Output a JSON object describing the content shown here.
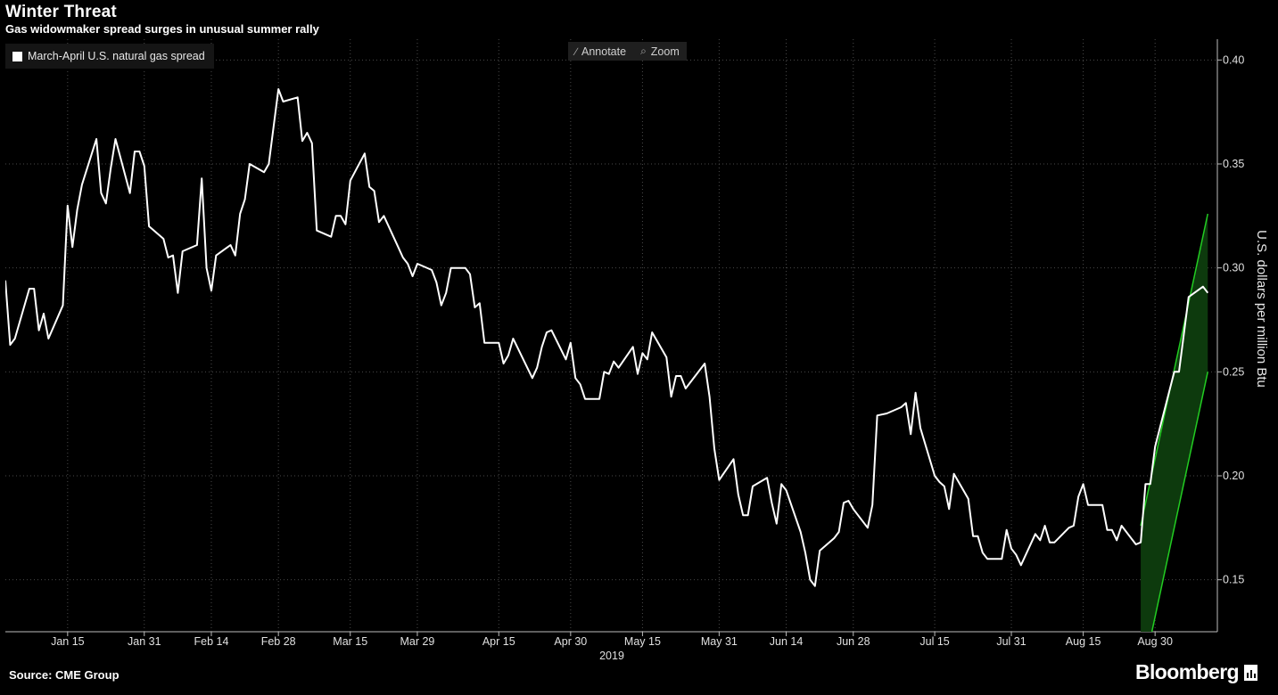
{
  "header": {
    "title": "Winter Threat",
    "subtitle": "Gas widowmaker spread surges in unusual summer rally"
  },
  "toolbar": {
    "annotate_label": "Annotate",
    "zoom_label": "Zoom",
    "annotate_icon": "pencil-icon",
    "zoom_icon": "magnifier-icon"
  },
  "footer": {
    "source": "Source: CME Group",
    "brand": "Bloomberg",
    "brand_icon": "bar-chart-icon"
  },
  "colors": {
    "background": "#000000",
    "line": "#ffffff",
    "trend_channel": "#22cc22",
    "trend_fill": "#0d3a0d",
    "gridline": "#4a4a4a"
  },
  "chart_data": {
    "type": "line",
    "title": "Winter Threat",
    "subtitle": "Gas widowmaker spread surges in unusual summer rally",
    "ylabel": "U.S. dollars per million Btu",
    "xlabel": "2019",
    "y_axis_position": "right",
    "ylim": [
      0.125,
      0.41
    ],
    "y_ticks": [
      0.15,
      0.2,
      0.25,
      0.3,
      0.35,
      0.4
    ],
    "y_tick_labels": [
      "0.15",
      "0.20",
      "0.25",
      "0.30",
      "0.35",
      "0.40"
    ],
    "xlim": [
      "2019-01-02",
      "2019-09-12"
    ],
    "x_ticks": [
      "2019-01-15",
      "2019-01-31",
      "2019-02-14",
      "2019-02-28",
      "2019-03-15",
      "2019-03-29",
      "2019-04-15",
      "2019-04-30",
      "2019-05-15",
      "2019-05-31",
      "2019-06-14",
      "2019-06-28",
      "2019-07-15",
      "2019-07-31",
      "2019-08-15",
      "2019-08-30"
    ],
    "x_tick_labels": [
      "Jan 15",
      "Jan 31",
      "Feb 14",
      "Feb 28",
      "Mar 15",
      "Mar 29",
      "Apr 15",
      "Apr 30",
      "May 15",
      "May 31",
      "Jun 14",
      "Jun 28",
      "Jul 15",
      "Jul 31",
      "Aug 15",
      "Aug 30"
    ],
    "grid": "dotted",
    "legend": "top-left",
    "series": [
      {
        "name": "March-April U.S. natural gas spread",
        "x": [
          "2019-01-02",
          "2019-01-03",
          "2019-01-04",
          "2019-01-07",
          "2019-01-08",
          "2019-01-09",
          "2019-01-10",
          "2019-01-11",
          "2019-01-14",
          "2019-01-15",
          "2019-01-16",
          "2019-01-17",
          "2019-01-18",
          "2019-01-21",
          "2019-01-22",
          "2019-01-23",
          "2019-01-24",
          "2019-01-25",
          "2019-01-28",
          "2019-01-29",
          "2019-01-30",
          "2019-01-31",
          "2019-02-01",
          "2019-02-04",
          "2019-02-05",
          "2019-02-06",
          "2019-02-07",
          "2019-02-08",
          "2019-02-11",
          "2019-02-12",
          "2019-02-13",
          "2019-02-14",
          "2019-02-15",
          "2019-02-18",
          "2019-02-19",
          "2019-02-20",
          "2019-02-21",
          "2019-02-22",
          "2019-02-25",
          "2019-02-26",
          "2019-02-27",
          "2019-02-28",
          "2019-03-01",
          "2019-03-04",
          "2019-03-05",
          "2019-03-06",
          "2019-03-07",
          "2019-03-08",
          "2019-03-11",
          "2019-03-12",
          "2019-03-13",
          "2019-03-14",
          "2019-03-15",
          "2019-03-18",
          "2019-03-19",
          "2019-03-20",
          "2019-03-21",
          "2019-03-22",
          "2019-03-25",
          "2019-03-26",
          "2019-03-27",
          "2019-03-28",
          "2019-03-29",
          "2019-04-01",
          "2019-04-02",
          "2019-04-03",
          "2019-04-04",
          "2019-04-05",
          "2019-04-08",
          "2019-04-09",
          "2019-04-10",
          "2019-04-11",
          "2019-04-12",
          "2019-04-15",
          "2019-04-16",
          "2019-04-17",
          "2019-04-18",
          "2019-04-22",
          "2019-04-23",
          "2019-04-24",
          "2019-04-25",
          "2019-04-26",
          "2019-04-29",
          "2019-04-30",
          "2019-05-01",
          "2019-05-02",
          "2019-05-03",
          "2019-05-06",
          "2019-05-07",
          "2019-05-08",
          "2019-05-09",
          "2019-05-10",
          "2019-05-13",
          "2019-05-14",
          "2019-05-15",
          "2019-05-16",
          "2019-05-17",
          "2019-05-20",
          "2019-05-21",
          "2019-05-22",
          "2019-05-23",
          "2019-05-24",
          "2019-05-28",
          "2019-05-29",
          "2019-05-30",
          "2019-05-31",
          "2019-06-03",
          "2019-06-04",
          "2019-06-05",
          "2019-06-06",
          "2019-06-07",
          "2019-06-10",
          "2019-06-11",
          "2019-06-12",
          "2019-06-13",
          "2019-06-14",
          "2019-06-17",
          "2019-06-18",
          "2019-06-19",
          "2019-06-20",
          "2019-06-21",
          "2019-06-24",
          "2019-06-25",
          "2019-06-26",
          "2019-06-27",
          "2019-06-28",
          "2019-07-01",
          "2019-07-02",
          "2019-07-03",
          "2019-07-05",
          "2019-07-08",
          "2019-07-09",
          "2019-07-10",
          "2019-07-11",
          "2019-07-12",
          "2019-07-15",
          "2019-07-16",
          "2019-07-17",
          "2019-07-18",
          "2019-07-19",
          "2019-07-22",
          "2019-07-23",
          "2019-07-24",
          "2019-07-25",
          "2019-07-26",
          "2019-07-29",
          "2019-07-30",
          "2019-07-31",
          "2019-08-01",
          "2019-08-02",
          "2019-08-05",
          "2019-08-06",
          "2019-08-07",
          "2019-08-08",
          "2019-08-09",
          "2019-08-12",
          "2019-08-13",
          "2019-08-14",
          "2019-08-15",
          "2019-08-16",
          "2019-08-19",
          "2019-08-20",
          "2019-08-21",
          "2019-08-22",
          "2019-08-23",
          "2019-08-26",
          "2019-08-27",
          "2019-08-28",
          "2019-08-29",
          "2019-08-30",
          "2019-09-03",
          "2019-09-04",
          "2019-09-05",
          "2019-09-06",
          "2019-09-09",
          "2019-09-10"
        ],
        "values": [
          0.294,
          0.263,
          0.266,
          0.29,
          0.29,
          0.27,
          0.278,
          0.266,
          0.282,
          0.33,
          0.31,
          0.328,
          0.34,
          0.362,
          0.336,
          0.331,
          0.348,
          0.362,
          0.336,
          0.356,
          0.356,
          0.349,
          0.32,
          0.314,
          0.305,
          0.306,
          0.288,
          0.308,
          0.311,
          0.343,
          0.3,
          0.289,
          0.306,
          0.311,
          0.306,
          0.326,
          0.333,
          0.35,
          0.346,
          0.35,
          0.368,
          0.386,
          0.38,
          0.382,
          0.361,
          0.365,
          0.36,
          0.318,
          0.315,
          0.325,
          0.325,
          0.321,
          0.342,
          0.355,
          0.339,
          0.337,
          0.322,
          0.325,
          0.31,
          0.305,
          0.302,
          0.296,
          0.302,
          0.299,
          0.293,
          0.282,
          0.288,
          0.3,
          0.3,
          0.297,
          0.281,
          0.283,
          0.264,
          0.264,
          0.254,
          0.258,
          0.266,
          0.247,
          0.252,
          0.262,
          0.269,
          0.27,
          0.256,
          0.264,
          0.247,
          0.244,
          0.237,
          0.237,
          0.25,
          0.249,
          0.255,
          0.252,
          0.262,
          0.249,
          0.259,
          0.256,
          0.269,
          0.257,
          0.238,
          0.248,
          0.248,
          0.242,
          0.254,
          0.238,
          0.213,
          0.198,
          0.208,
          0.191,
          0.181,
          0.181,
          0.195,
          0.199,
          0.187,
          0.177,
          0.196,
          0.193,
          0.173,
          0.163,
          0.15,
          0.147,
          0.164,
          0.17,
          0.173,
          0.187,
          0.188,
          0.184,
          0.175,
          0.186,
          0.229,
          0.23,
          0.233,
          0.235,
          0.22,
          0.24,
          0.223,
          0.2,
          0.197,
          0.195,
          0.184,
          0.201,
          0.189,
          0.171,
          0.171,
          0.163,
          0.16,
          0.16,
          0.174,
          0.165,
          0.162,
          0.157,
          0.172,
          0.169,
          0.176,
          0.168,
          0.168,
          0.175,
          0.176,
          0.19,
          0.196,
          0.186,
          0.186,
          0.174,
          0.174,
          0.169,
          0.176,
          0.167,
          0.168,
          0.196,
          0.196,
          0.214,
          0.25,
          0.25,
          0.268,
          0.286,
          0.291,
          0.288
        ]
      }
    ],
    "annotations": [
      {
        "type": "trend-channel",
        "x": [
          "2019-08-27",
          "2019-09-10"
        ],
        "upper": [
          0.176,
          0.326
        ],
        "lower": [
          0.1,
          0.25
        ]
      }
    ]
  }
}
